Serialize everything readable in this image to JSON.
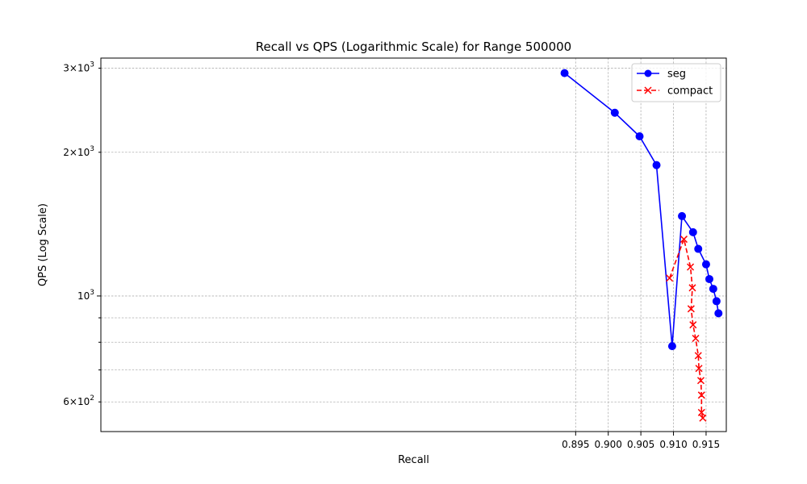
{
  "chart_data": {
    "type": "line",
    "title": "Recall vs QPS (Logarithmic Scale) for Range 500000",
    "xlabel": "Recall",
    "ylabel": "QPS (Log Scale)",
    "xlim": [
      0.8222,
      0.9181
    ],
    "ylim": [
      520,
      3150
    ],
    "y_scale": "log",
    "grid": true,
    "legend_position": "top-right",
    "x_ticks": [
      {
        "value": 0.895,
        "label": "0.895"
      },
      {
        "value": 0.9,
        "label": "0.900"
      },
      {
        "value": 0.905,
        "label": "0.905"
      },
      {
        "value": 0.91,
        "label": "0.910"
      },
      {
        "value": 0.915,
        "label": "0.915"
      }
    ],
    "y_major_ticks": [
      {
        "value": 1000,
        "base": "10",
        "exponent": "3"
      }
    ],
    "y_minor_labeled_ticks": [
      {
        "value": 600,
        "mantissa": "6",
        "base": "10",
        "exponent": "2"
      },
      {
        "value": 2000,
        "mantissa": "2",
        "base": "10",
        "exponent": "3"
      },
      {
        "value": 3000,
        "mantissa": "3",
        "base": "10",
        "exponent": "3"
      }
    ],
    "y_minor_ticks": [
      700,
      800,
      900
    ],
    "series": [
      {
        "name": "seg",
        "color": "#0000ff",
        "line_style": "solid",
        "marker": "circle",
        "points": [
          {
            "x": 0.8933,
            "y": 2930
          },
          {
            "x": 0.901,
            "y": 2420
          },
          {
            "x": 0.9048,
            "y": 2160
          },
          {
            "x": 0.9074,
            "y": 1880
          },
          {
            "x": 0.9098,
            "y": 785
          },
          {
            "x": 0.9113,
            "y": 1470
          },
          {
            "x": 0.913,
            "y": 1360
          },
          {
            "x": 0.9138,
            "y": 1255
          },
          {
            "x": 0.915,
            "y": 1165
          },
          {
            "x": 0.9155,
            "y": 1085
          },
          {
            "x": 0.9161,
            "y": 1035
          },
          {
            "x": 0.9166,
            "y": 975
          },
          {
            "x": 0.9169,
            "y": 920
          }
        ]
      },
      {
        "name": "compact",
        "color": "#ff0000",
        "line_style": "dashed",
        "marker": "x",
        "points": [
          {
            "x": 0.9094,
            "y": 1090
          },
          {
            "x": 0.9116,
            "y": 1315
          },
          {
            "x": 0.9126,
            "y": 1150
          },
          {
            "x": 0.9129,
            "y": 1040
          },
          {
            "x": 0.9127,
            "y": 940
          },
          {
            "x": 0.913,
            "y": 870
          },
          {
            "x": 0.9134,
            "y": 815
          },
          {
            "x": 0.9138,
            "y": 750
          },
          {
            "x": 0.9139,
            "y": 705
          },
          {
            "x": 0.9142,
            "y": 665
          },
          {
            "x": 0.9143,
            "y": 620
          },
          {
            "x": 0.9143,
            "y": 570
          },
          {
            "x": 0.9145,
            "y": 555
          }
        ]
      }
    ]
  }
}
